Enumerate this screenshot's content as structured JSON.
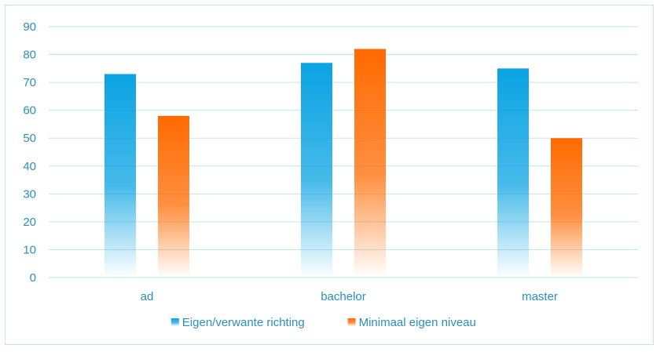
{
  "chart_data": {
    "type": "bar",
    "categories": [
      "ad",
      "bachelor",
      "master"
    ],
    "series": [
      {
        "name": "Eigen/verwante richting",
        "values": [
          73,
          77,
          75
        ],
        "color": "#0aa3e3"
      },
      {
        "name": "Minimaal eigen niveau",
        "values": [
          58,
          82,
          50
        ],
        "color": "#ff6a00"
      }
    ],
    "ylim": [
      0,
      90
    ],
    "yticks": [
      0,
      10,
      20,
      30,
      40,
      50,
      60,
      70,
      80,
      90
    ],
    "grid": true,
    "legend_position": "bottom",
    "title": "",
    "xlabel": "",
    "ylabel": ""
  }
}
